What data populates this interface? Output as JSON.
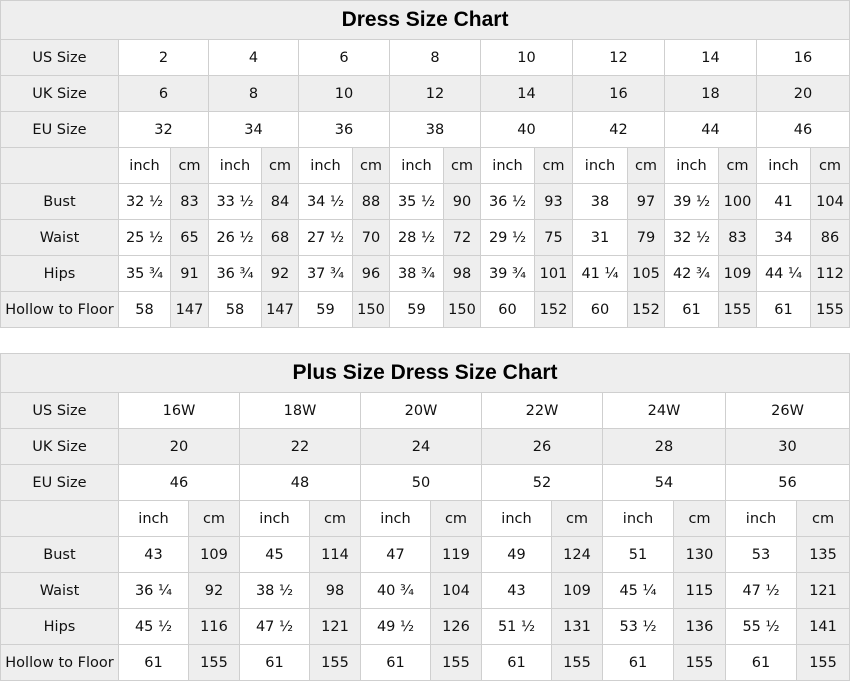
{
  "chart1": {
    "title": "Dress Size Chart",
    "us_label": "US Size",
    "uk_label": "UK Size",
    "eu_label": "EU Size",
    "us": [
      "2",
      "4",
      "6",
      "8",
      "10",
      "12",
      "14",
      "16"
    ],
    "uk": [
      "6",
      "8",
      "10",
      "12",
      "14",
      "16",
      "18",
      "20"
    ],
    "eu": [
      "32",
      "34",
      "36",
      "38",
      "40",
      "42",
      "44",
      "46"
    ],
    "unit_inch": "inch",
    "unit_cm": "cm",
    "rows": [
      {
        "label": "Bust",
        "values": [
          "32 ½",
          "83",
          "33 ½",
          "84",
          "34 ½",
          "88",
          "35 ½",
          "90",
          "36 ½",
          "93",
          "38",
          "97",
          "39 ½",
          "100",
          "41",
          "104"
        ]
      },
      {
        "label": "Waist",
        "values": [
          "25 ½",
          "65",
          "26 ½",
          "68",
          "27 ½",
          "70",
          "28 ½",
          "72",
          "29 ½",
          "75",
          "31",
          "79",
          "32 ½",
          "83",
          "34",
          "86"
        ]
      },
      {
        "label": "Hips",
        "values": [
          "35 ¾",
          "91",
          "36 ¾",
          "92",
          "37 ¾",
          "96",
          "38 ¾",
          "98",
          "39 ¾",
          "101",
          "41 ¼",
          "105",
          "42 ¾",
          "109",
          "44 ¼",
          "112"
        ]
      },
      {
        "label": "Hollow to Floor",
        "values": [
          "58",
          "147",
          "58",
          "147",
          "59",
          "150",
          "59",
          "150",
          "60",
          "152",
          "60",
          "152",
          "61",
          "155",
          "61",
          "155"
        ]
      }
    ]
  },
  "chart2": {
    "title": "Plus Size Dress Size Chart",
    "us_label": "US Size",
    "uk_label": "UK Size",
    "eu_label": "EU Size",
    "us": [
      "16W",
      "18W",
      "20W",
      "22W",
      "24W",
      "26W"
    ],
    "uk": [
      "20",
      "22",
      "24",
      "26",
      "28",
      "30"
    ],
    "eu": [
      "46",
      "48",
      "50",
      "52",
      "54",
      "56"
    ],
    "unit_inch": "inch",
    "unit_cm": "cm",
    "rows": [
      {
        "label": "Bust",
        "values": [
          "43",
          "109",
          "45",
          "114",
          "47",
          "119",
          "49",
          "124",
          "51",
          "130",
          "53",
          "135"
        ]
      },
      {
        "label": "Waist",
        "values": [
          "36 ¼",
          "92",
          "38 ½",
          "98",
          "40 ¾",
          "104",
          "43",
          "109",
          "45 ¼",
          "115",
          "47 ½",
          "121"
        ]
      },
      {
        "label": "Hips",
        "values": [
          "45 ½",
          "116",
          "47 ½",
          "121",
          "49 ½",
          "126",
          "51 ½",
          "131",
          "53 ½",
          "136",
          "55 ½",
          "141"
        ]
      },
      {
        "label": "Hollow to Floor",
        "values": [
          "61",
          "155",
          "61",
          "155",
          "61",
          "155",
          "61",
          "155",
          "61",
          "155",
          "61",
          "155"
        ]
      }
    ]
  }
}
